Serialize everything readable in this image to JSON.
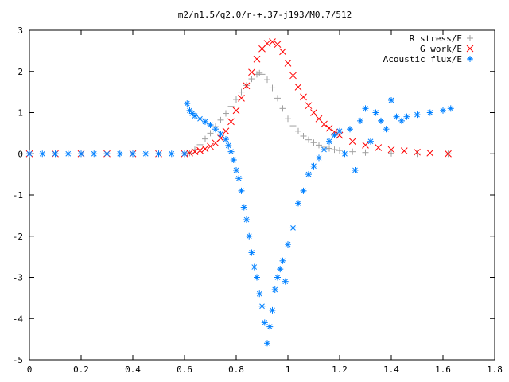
{
  "chart_data": {
    "type": "scatter",
    "title": "m2/n1.5/q2.0/r-+.37-j193/M0.7/512",
    "xlabel": "",
    "ylabel": "",
    "xlim": [
      0,
      1.8
    ],
    "ylim": [
      -5,
      3
    ],
    "x_ticks": [
      "0",
      "0.2",
      "0.4",
      "0.6",
      "0.8",
      "1",
      "1.2",
      "1.4",
      "1.6",
      "1.8"
    ],
    "y_ticks": [
      "3",
      "2",
      "1",
      "0",
      "-1",
      "-2",
      "-3",
      "-4",
      "-5"
    ],
    "grid": false,
    "legend_position": "top-right",
    "series": [
      {
        "name": "R stress/E",
        "marker": "+",
        "color": "#a0a0a0",
        "points": [
          [
            0,
            0
          ],
          [
            0.1,
            0
          ],
          [
            0.2,
            0
          ],
          [
            0.3,
            0
          ],
          [
            0.4,
            0
          ],
          [
            0.5,
            0
          ],
          [
            0.6,
            0
          ],
          [
            0.62,
            0.02
          ],
          [
            0.64,
            0.1
          ],
          [
            0.66,
            0.22
          ],
          [
            0.68,
            0.36
          ],
          [
            0.7,
            0.5
          ],
          [
            0.72,
            0.66
          ],
          [
            0.74,
            0.82
          ],
          [
            0.76,
            0.98
          ],
          [
            0.78,
            1.15
          ],
          [
            0.8,
            1.32
          ],
          [
            0.82,
            1.5
          ],
          [
            0.84,
            1.66
          ],
          [
            0.86,
            1.82
          ],
          [
            0.88,
            1.93
          ],
          [
            0.89,
            1.96
          ],
          [
            0.9,
            1.93
          ],
          [
            0.92,
            1.8
          ],
          [
            0.94,
            1.6
          ],
          [
            0.96,
            1.35
          ],
          [
            0.98,
            1.1
          ],
          [
            1.0,
            0.85
          ],
          [
            1.02,
            0.68
          ],
          [
            1.04,
            0.55
          ],
          [
            1.06,
            0.43
          ],
          [
            1.08,
            0.34
          ],
          [
            1.1,
            0.27
          ],
          [
            1.12,
            0.21
          ],
          [
            1.14,
            0.16
          ],
          [
            1.16,
            0.13
          ],
          [
            1.18,
            0.1
          ],
          [
            1.2,
            0.08
          ],
          [
            1.25,
            0.05
          ],
          [
            1.3,
            0.03
          ],
          [
            1.4,
            0.01
          ],
          [
            1.5,
            0
          ],
          [
            1.62,
            0
          ]
        ]
      },
      {
        "name": "G work/E",
        "marker": "x",
        "color": "#ff0000",
        "points": [
          [
            0,
            0
          ],
          [
            0.1,
            0
          ],
          [
            0.2,
            0
          ],
          [
            0.3,
            0
          ],
          [
            0.4,
            0
          ],
          [
            0.5,
            0
          ],
          [
            0.6,
            0
          ],
          [
            0.62,
            0.02
          ],
          [
            0.64,
            0.05
          ],
          [
            0.66,
            0.08
          ],
          [
            0.68,
            0.12
          ],
          [
            0.7,
            0.18
          ],
          [
            0.72,
            0.26
          ],
          [
            0.74,
            0.38
          ],
          [
            0.76,
            0.55
          ],
          [
            0.78,
            0.78
          ],
          [
            0.8,
            1.05
          ],
          [
            0.82,
            1.35
          ],
          [
            0.84,
            1.65
          ],
          [
            0.86,
            1.98
          ],
          [
            0.88,
            2.3
          ],
          [
            0.9,
            2.55
          ],
          [
            0.92,
            2.68
          ],
          [
            0.94,
            2.72
          ],
          [
            0.96,
            2.66
          ],
          [
            0.98,
            2.48
          ],
          [
            1.0,
            2.2
          ],
          [
            1.02,
            1.9
          ],
          [
            1.04,
            1.62
          ],
          [
            1.06,
            1.38
          ],
          [
            1.08,
            1.17
          ],
          [
            1.1,
            1.0
          ],
          [
            1.12,
            0.85
          ],
          [
            1.14,
            0.72
          ],
          [
            1.16,
            0.62
          ],
          [
            1.18,
            0.53
          ],
          [
            1.2,
            0.45
          ],
          [
            1.25,
            0.3
          ],
          [
            1.3,
            0.21
          ],
          [
            1.35,
            0.15
          ],
          [
            1.4,
            0.1
          ],
          [
            1.45,
            0.07
          ],
          [
            1.5,
            0.04
          ],
          [
            1.55,
            0.02
          ],
          [
            1.62,
            0
          ]
        ]
      },
      {
        "name": "Acoustic flux/E",
        "marker": "*",
        "color": "#0080ff",
        "points": [
          [
            0,
            0
          ],
          [
            0.05,
            0
          ],
          [
            0.1,
            0
          ],
          [
            0.15,
            0
          ],
          [
            0.2,
            0
          ],
          [
            0.25,
            0
          ],
          [
            0.3,
            0
          ],
          [
            0.35,
            0
          ],
          [
            0.4,
            0
          ],
          [
            0.45,
            0
          ],
          [
            0.5,
            0
          ],
          [
            0.55,
            0
          ],
          [
            0.6,
            0
          ],
          [
            0.61,
            1.22
          ],
          [
            0.62,
            1.05
          ],
          [
            0.63,
            0.98
          ],
          [
            0.64,
            0.92
          ],
          [
            0.66,
            0.85
          ],
          [
            0.68,
            0.78
          ],
          [
            0.7,
            0.7
          ],
          [
            0.72,
            0.6
          ],
          [
            0.74,
            0.48
          ],
          [
            0.76,
            0.35
          ],
          [
            0.77,
            0.2
          ],
          [
            0.78,
            0.05
          ],
          [
            0.79,
            -0.15
          ],
          [
            0.8,
            -0.4
          ],
          [
            0.81,
            -0.6
          ],
          [
            0.82,
            -0.9
          ],
          [
            0.83,
            -1.3
          ],
          [
            0.84,
            -1.6
          ],
          [
            0.85,
            -2.0
          ],
          [
            0.86,
            -2.4
          ],
          [
            0.87,
            -2.75
          ],
          [
            0.88,
            -3.0
          ],
          [
            0.89,
            -3.4
          ],
          [
            0.9,
            -3.7
          ],
          [
            0.91,
            -4.1
          ],
          [
            0.92,
            -4.6
          ],
          [
            0.93,
            -4.2
          ],
          [
            0.94,
            -3.8
          ],
          [
            0.95,
            -3.3
          ],
          [
            0.96,
            -3.0
          ],
          [
            0.97,
            -2.8
          ],
          [
            0.98,
            -2.6
          ],
          [
            0.99,
            -3.1
          ],
          [
            1.0,
            -2.2
          ],
          [
            1.02,
            -1.8
          ],
          [
            1.04,
            -1.2
          ],
          [
            1.06,
            -0.9
          ],
          [
            1.08,
            -0.5
          ],
          [
            1.1,
            -0.3
          ],
          [
            1.12,
            -0.1
          ],
          [
            1.14,
            0.1
          ],
          [
            1.16,
            0.3
          ],
          [
            1.18,
            0.45
          ],
          [
            1.2,
            0.55
          ],
          [
            1.22,
            0.0
          ],
          [
            1.24,
            0.6
          ],
          [
            1.26,
            -0.4
          ],
          [
            1.28,
            0.8
          ],
          [
            1.3,
            1.1
          ],
          [
            1.32,
            0.3
          ],
          [
            1.34,
            1.0
          ],
          [
            1.36,
            0.8
          ],
          [
            1.38,
            0.6
          ],
          [
            1.4,
            1.3
          ],
          [
            1.42,
            0.9
          ],
          [
            1.44,
            0.8
          ],
          [
            1.46,
            0.9
          ],
          [
            1.5,
            0.95
          ],
          [
            1.55,
            1.0
          ],
          [
            1.6,
            1.05
          ],
          [
            1.63,
            1.1
          ]
        ]
      }
    ]
  }
}
